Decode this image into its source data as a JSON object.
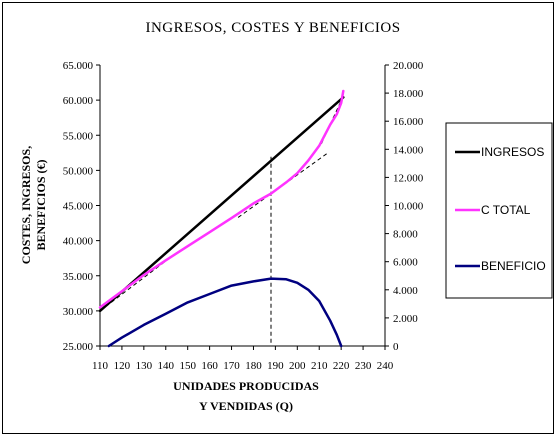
{
  "chart_data": {
    "type": "line",
    "title": "INGRESOS, COSTES Y BENEFICIOS",
    "xlabel_line1": "UNIDADES PRODUCIDAS",
    "xlabel_line2": "Y VENDIDAS (Q)",
    "ylabel_line1": "COSTES, INGRESOS,",
    "ylabel_line2": "BENEFICIOS (€)",
    "xlim": [
      110,
      240
    ],
    "ylim_left": [
      25000,
      65000
    ],
    "ylim_right": [
      0,
      20000
    ],
    "x_ticks": [
      "110",
      "120",
      "130",
      "140",
      "150",
      "160",
      "170",
      "180",
      "190",
      "200",
      "210",
      "220",
      "230",
      "240"
    ],
    "y_left_ticks": [
      "25.000",
      "30.000",
      "35.000",
      "40.000",
      "45.000",
      "50.000",
      "55.000",
      "60.000",
      "65.000"
    ],
    "y_right_ticks": [
      "0",
      "2.000",
      "4.000",
      "6.000",
      "8.000",
      "10.000",
      "12.000",
      "14.000",
      "16.000",
      "18.000",
      "20.000"
    ],
    "grid": false,
    "legend_position": "right",
    "series": [
      {
        "name": "INGRESOS",
        "axis": "left",
        "color": "#000000",
        "x": [
          110,
          221
        ],
        "y": [
          30000,
          60400
        ]
      },
      {
        "name": "C TOTAL",
        "axis": "left",
        "color": "#ff33ff",
        "x": [
          110,
          120,
          130,
          140,
          150,
          160,
          170,
          180,
          188,
          195,
          200,
          205,
          210,
          215,
          218,
          220,
          221
        ],
        "y": [
          30500,
          32800,
          35100,
          37200,
          39200,
          41200,
          43200,
          45300,
          46700,
          48300,
          49600,
          51400,
          53500,
          56500,
          58000,
          59600,
          61300
        ]
      },
      {
        "name": "BENEFICIO",
        "axis": "right",
        "color": "#000080",
        "x": [
          114,
          120,
          130,
          140,
          150,
          160,
          170,
          180,
          188,
          195,
          200,
          205,
          210,
          215,
          218,
          220
        ],
        "y": [
          0,
          600,
          1500,
          2300,
          3100,
          3700,
          4300,
          4600,
          4800,
          4750,
          4500,
          4000,
          3200,
          1800,
          800,
          0
        ]
      }
    ],
    "tangent_lines": [
      {
        "color": "#000000",
        "x": [
          110,
          140
        ],
        "y": [
          30000,
          37100
        ]
      },
      {
        "color": "#000000",
        "x": [
          173,
          214
        ],
        "y": [
          43300,
          52500
        ]
      },
      {
        "color": "#000000",
        "x": [
          211,
          221
        ],
        "y": [
          53800,
          60600
        ]
      }
    ],
    "reference_line": {
      "x": 188,
      "color": "#000000"
    }
  }
}
